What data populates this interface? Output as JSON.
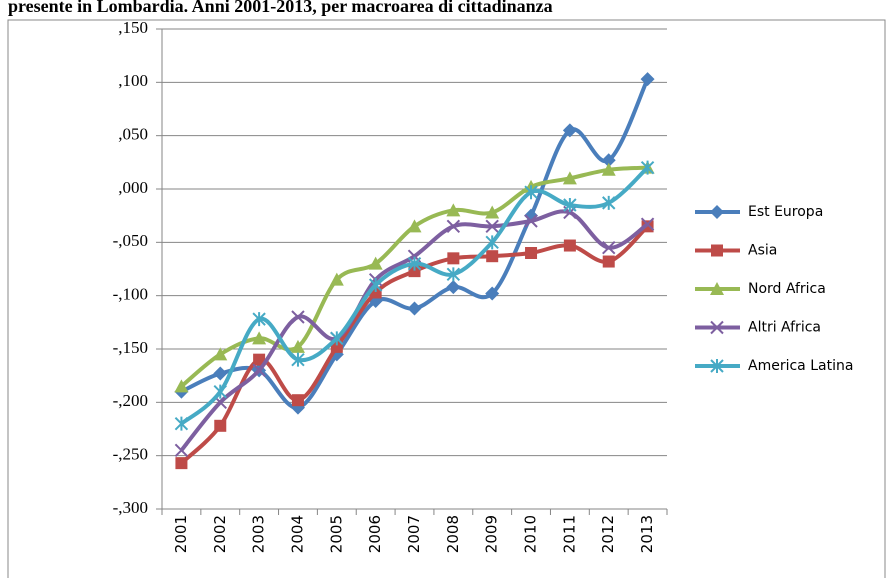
{
  "chart_data": {
    "type": "line",
    "title": "presente in Lombardia. Anni 2001-2013, per macroarea di cittadinanza",
    "categories": [
      "2001",
      "2002",
      "2003",
      "2004",
      "2005",
      "2006",
      "2007",
      "2008",
      "2009",
      "2010",
      "2011",
      "2012",
      "2013"
    ],
    "series": [
      {
        "name": "Est Europa",
        "color": "#4a7ebb",
        "marker": "diamond",
        "values": [
          -0.19,
          -0.173,
          -0.17,
          -0.205,
          -0.155,
          -0.105,
          -0.112,
          -0.092,
          -0.098,
          -0.025,
          0.055,
          0.027,
          0.103
        ]
      },
      {
        "name": "Asia",
        "color": "#be4b48",
        "marker": "square",
        "values": [
          -0.257,
          -0.222,
          -0.16,
          -0.198,
          -0.148,
          -0.097,
          -0.077,
          -0.065,
          -0.063,
          -0.06,
          -0.053,
          -0.068,
          -0.035
        ]
      },
      {
        "name": "Nord Africa",
        "color": "#98b954",
        "marker": "triangle",
        "values": [
          -0.185,
          -0.155,
          -0.14,
          -0.148,
          -0.085,
          -0.07,
          -0.035,
          -0.02,
          -0.022,
          0.002,
          0.01,
          0.018,
          0.02
        ]
      },
      {
        "name": "Altri Africa",
        "color": "#7d5fa0",
        "marker": "x",
        "values": [
          -0.245,
          -0.2,
          -0.17,
          -0.12,
          -0.14,
          -0.085,
          -0.063,
          -0.035,
          -0.035,
          -0.03,
          -0.022,
          -0.055,
          -0.033
        ]
      },
      {
        "name": "America Latina",
        "color": "#46aac5",
        "marker": "star",
        "values": [
          -0.22,
          -0.19,
          -0.122,
          -0.16,
          -0.14,
          -0.09,
          -0.07,
          -0.08,
          -0.05,
          -0.003,
          -0.015,
          -0.013,
          0.02
        ]
      }
    ],
    "ylim": [
      -0.3,
      0.15
    ],
    "yticks": [
      {
        "value": 0.15,
        "label": ",150"
      },
      {
        "value": 0.1,
        "label": ",100"
      },
      {
        "value": 0.05,
        "label": ",050"
      },
      {
        "value": 0,
        "label": ",000"
      },
      {
        "value": -0.05,
        "label": "-,050"
      },
      {
        "value": -0.1,
        "label": "-,100"
      },
      {
        "value": -0.15,
        "label": "-,150"
      },
      {
        "value": -0.2,
        "label": "-,200"
      },
      {
        "value": -0.25,
        "label": "-,250"
      },
      {
        "value": -0.3,
        "label": "-,300"
      }
    ],
    "grid": true,
    "smooth": true,
    "legend": "right"
  }
}
